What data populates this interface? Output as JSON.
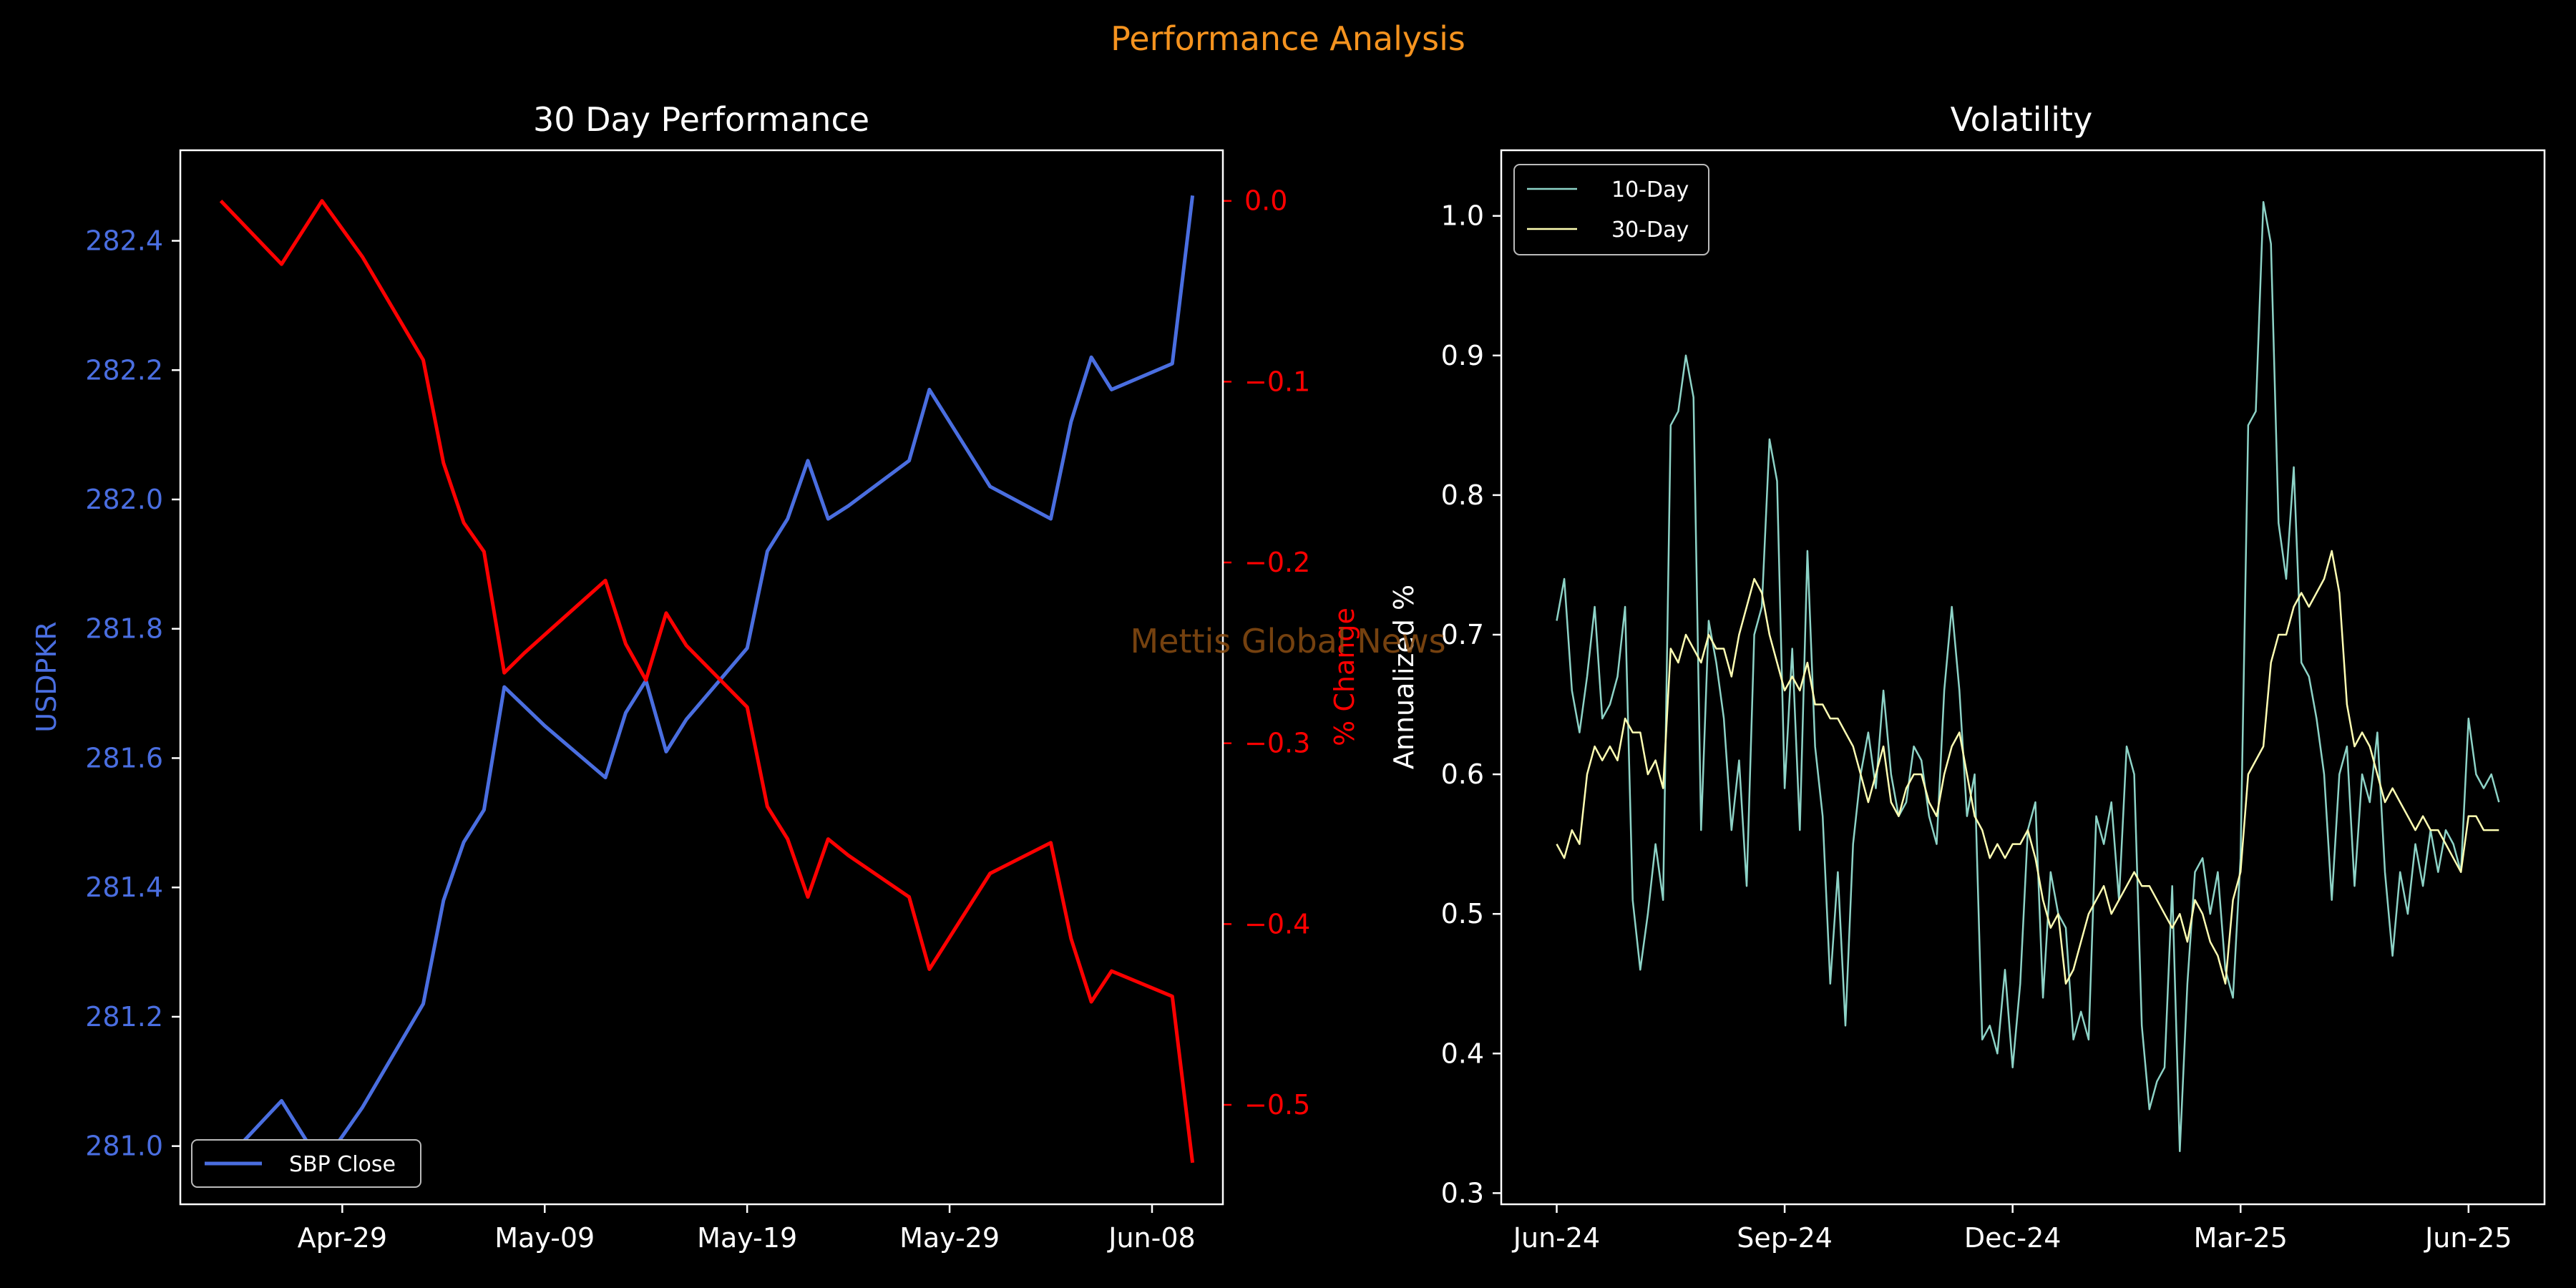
{
  "figure": {
    "suptitle": "Performance Analysis",
    "watermark": "Mettis Global News"
  },
  "colors": {
    "background": "#000000",
    "axes": "#ffffff",
    "close": "#4a6ee0",
    "pct": "#ff0000",
    "vol10": "#8dd3c7",
    "vol30": "#ffffb3",
    "suptitle": "#f5931f"
  },
  "chart_data": [
    {
      "type": "line",
      "title": "30 Day Performance",
      "xlabel": "",
      "ylabel": "USDPKR",
      "ylabel_right": "% Change",
      "x_ticks": [
        "Apr-29",
        "May-09",
        "May-19",
        "May-29",
        "Jun-08"
      ],
      "x_tick_days": [
        29,
        39,
        49,
        59,
        69
      ],
      "x_range_days": [
        21.0,
        72.5
      ],
      "ylim": [
        280.91,
        282.54
      ],
      "y_ticks": [
        "281.0",
        "281.2",
        "281.4",
        "281.6",
        "281.8",
        "282.0",
        "282.2",
        "282.4"
      ],
      "y_tick_values": [
        281.0,
        281.2,
        281.4,
        281.6,
        281.8,
        282.0,
        282.2,
        282.4
      ],
      "ylim_right": [
        -0.555,
        0.028
      ],
      "y_ticks_right": [
        "0.0",
        "−0.1",
        "−0.2",
        "−0.3",
        "−0.4",
        "−0.5"
      ],
      "y_tick_values_right": [
        0.0,
        -0.1,
        -0.2,
        -0.3,
        -0.4,
        -0.5
      ],
      "legend": {
        "placement": "lower-left",
        "entries": [
          "SBP Close"
        ]
      },
      "x_days": [
        23,
        26,
        28,
        30,
        33,
        34,
        35,
        36,
        37,
        38,
        39,
        42,
        43,
        44,
        45,
        46,
        49,
        50,
        51,
        52,
        53,
        54,
        57,
        58,
        61,
        64,
        65,
        66,
        67,
        70,
        71
      ],
      "series": [
        {
          "name": "SBP Close",
          "axis": "left",
          "values": [
            280.97,
            281.07,
            280.97,
            281.06,
            281.22,
            281.38,
            281.47,
            281.52,
            281.71,
            281.68,
            281.65,
            281.57,
            281.67,
            281.72,
            281.61,
            281.66,
            281.77,
            281.92,
            281.97,
            282.06,
            281.97,
            281.99,
            282.06,
            282.17,
            282.02,
            281.97,
            282.12,
            282.22,
            282.17,
            282.21,
            282.47
          ]
        },
        {
          "name": "% Change",
          "axis": "right",
          "values": [
            0.0,
            -0.035,
            0.0,
            -0.031,
            -0.088,
            -0.145,
            -0.178,
            -0.194,
            -0.261,
            -0.25,
            -0.24,
            -0.21,
            -0.245,
            -0.265,
            -0.228,
            -0.246,
            -0.28,
            -0.335,
            -0.353,
            -0.385,
            -0.353,
            -0.362,
            -0.385,
            -0.425,
            -0.372,
            -0.355,
            -0.408,
            -0.443,
            -0.426,
            -0.44,
            -0.532
          ]
        }
      ]
    },
    {
      "type": "line",
      "title": "Volatility",
      "xlabel": "",
      "ylabel": "Annualized %",
      "x_ticks": [
        "Jun-24",
        "Sep-24",
        "Dec-24",
        "Mar-25",
        "Jun-25"
      ],
      "x_tick_months": [
        0,
        3,
        6,
        9,
        12
      ],
      "x_range_months": [
        -0.73,
        13.0
      ],
      "ylim": [
        0.292,
        1.047
      ],
      "y_ticks": [
        "0.3",
        "0.4",
        "0.5",
        "0.6",
        "0.7",
        "0.8",
        "0.9",
        "1.0"
      ],
      "y_tick_values": [
        0.3,
        0.4,
        0.5,
        0.6,
        0.7,
        0.8,
        0.9,
        1.0
      ],
      "legend": {
        "placement": "upper-left",
        "entries": [
          "10-Day",
          "30-Day"
        ]
      },
      "x_months": [
        0.0,
        0.1,
        0.2,
        0.3,
        0.4,
        0.5,
        0.6,
        0.7,
        0.8,
        0.9,
        1.0,
        1.1,
        1.2,
        1.3,
        1.4,
        1.5,
        1.6,
        1.7,
        1.8,
        1.9,
        2.0,
        2.1,
        2.2,
        2.3,
        2.4,
        2.5,
        2.6,
        2.7,
        2.8,
        2.9,
        3.0,
        3.1,
        3.2,
        3.3,
        3.4,
        3.5,
        3.6,
        3.7,
        3.8,
        3.9,
        4.0,
        4.1,
        4.2,
        4.3,
        4.4,
        4.5,
        4.6,
        4.7,
        4.8,
        4.9,
        5.0,
        5.1,
        5.2,
        5.3,
        5.4,
        5.5,
        5.6,
        5.7,
        5.8,
        5.9,
        6.0,
        6.1,
        6.2,
        6.3,
        6.4,
        6.5,
        6.6,
        6.7,
        6.8,
        6.9,
        7.0,
        7.1,
        7.2,
        7.3,
        7.4,
        7.5,
        7.6,
        7.7,
        7.8,
        7.9,
        8.0,
        8.1,
        8.2,
        8.3,
        8.4,
        8.5,
        8.6,
        8.7,
        8.8,
        8.9,
        9.0,
        9.1,
        9.2,
        9.3,
        9.4,
        9.5,
        9.6,
        9.7,
        9.8,
        9.9,
        10.0,
        10.1,
        10.2,
        10.3,
        10.4,
        10.5,
        10.6,
        10.7,
        10.8,
        10.9,
        11.0,
        11.1,
        11.2,
        11.3,
        11.4,
        11.5,
        11.6,
        11.7,
        11.8,
        11.9,
        12.0,
        12.1,
        12.2,
        12.3,
        12.4
      ],
      "series": [
        {
          "name": "10-Day",
          "values": [
            0.71,
            0.74,
            0.66,
            0.63,
            0.67,
            0.72,
            0.64,
            0.65,
            0.67,
            0.72,
            0.51,
            0.46,
            0.5,
            0.55,
            0.51,
            0.85,
            0.86,
            0.9,
            0.87,
            0.56,
            0.71,
            0.68,
            0.64,
            0.56,
            0.61,
            0.52,
            0.7,
            0.72,
            0.84,
            0.81,
            0.59,
            0.69,
            0.56,
            0.76,
            0.62,
            0.57,
            0.45,
            0.53,
            0.42,
            0.55,
            0.6,
            0.63,
            0.59,
            0.66,
            0.6,
            0.57,
            0.58,
            0.62,
            0.61,
            0.57,
            0.55,
            0.66,
            0.72,
            0.66,
            0.57,
            0.6,
            0.41,
            0.42,
            0.4,
            0.46,
            0.39,
            0.45,
            0.56,
            0.58,
            0.44,
            0.53,
            0.5,
            0.49,
            0.41,
            0.43,
            0.41,
            0.57,
            0.55,
            0.58,
            0.51,
            0.62,
            0.6,
            0.42,
            0.36,
            0.38,
            0.39,
            0.52,
            0.33,
            0.45,
            0.53,
            0.54,
            0.5,
            0.53,
            0.46,
            0.44,
            0.54,
            0.85,
            0.86,
            1.01,
            0.98,
            0.78,
            0.74,
            0.82,
            0.68,
            0.67,
            0.64,
            0.6,
            0.51,
            0.6,
            0.62,
            0.52,
            0.6,
            0.58,
            0.63,
            0.53,
            0.47,
            0.53,
            0.5,
            0.55,
            0.52,
            0.56,
            0.53,
            0.56,
            0.55,
            0.53,
            0.64,
            0.6,
            0.59,
            0.6,
            0.58
          ]
        },
        {
          "name": "30-Day",
          "values": [
            0.55,
            0.54,
            0.56,
            0.55,
            0.6,
            0.62,
            0.61,
            0.62,
            0.61,
            0.64,
            0.63,
            0.63,
            0.6,
            0.61,
            0.59,
            0.69,
            0.68,
            0.7,
            0.69,
            0.68,
            0.7,
            0.69,
            0.69,
            0.67,
            0.7,
            0.72,
            0.74,
            0.73,
            0.7,
            0.68,
            0.66,
            0.67,
            0.66,
            0.68,
            0.65,
            0.65,
            0.64,
            0.64,
            0.63,
            0.62,
            0.6,
            0.58,
            0.6,
            0.62,
            0.58,
            0.57,
            0.59,
            0.6,
            0.6,
            0.58,
            0.57,
            0.6,
            0.62,
            0.63,
            0.6,
            0.57,
            0.56,
            0.54,
            0.55,
            0.54,
            0.55,
            0.55,
            0.56,
            0.54,
            0.51,
            0.49,
            0.5,
            0.45,
            0.46,
            0.48,
            0.5,
            0.51,
            0.52,
            0.5,
            0.51,
            0.52,
            0.53,
            0.52,
            0.52,
            0.51,
            0.5,
            0.49,
            0.5,
            0.48,
            0.51,
            0.5,
            0.48,
            0.47,
            0.45,
            0.51,
            0.53,
            0.6,
            0.61,
            0.62,
            0.68,
            0.7,
            0.7,
            0.72,
            0.73,
            0.72,
            0.73,
            0.74,
            0.76,
            0.73,
            0.65,
            0.62,
            0.63,
            0.62,
            0.6,
            0.58,
            0.59,
            0.58,
            0.57,
            0.56,
            0.57,
            0.56,
            0.56,
            0.55,
            0.54,
            0.53,
            0.57,
            0.57,
            0.56,
            0.56,
            0.56
          ]
        }
      ]
    }
  ]
}
